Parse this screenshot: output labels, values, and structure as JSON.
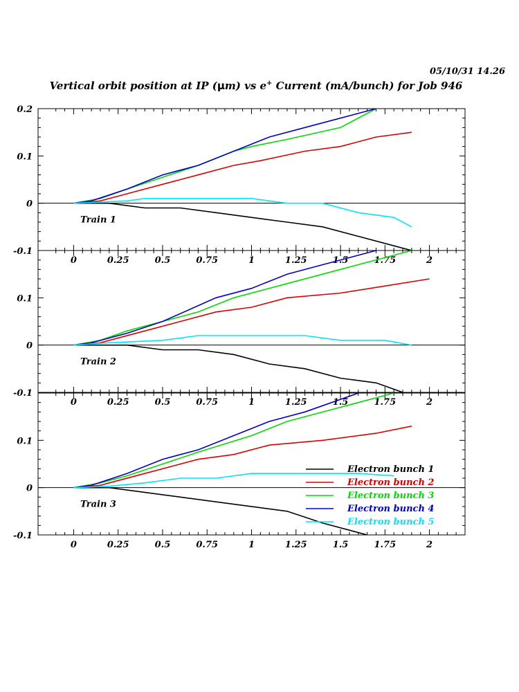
{
  "header": {
    "timestamp": "05/10/31   14.26",
    "title_before": "Vertical orbit position at IP (",
    "title_mu": "μ",
    "title_mid": "m) vs e",
    "title_sup": "+",
    "title_after": " Current (mA/bunch) for Job 946"
  },
  "chart_data": {
    "type": "line",
    "x_ticks": [
      "0",
      "0.25",
      "0.5",
      "0.75",
      "1",
      "1.25",
      "1.5",
      "1.75",
      "2"
    ],
    "x_range": [
      -0.2,
      2.2
    ],
    "legend": [
      {
        "name": "Electron bunch 1",
        "color": "#000000"
      },
      {
        "name": "Electron bunch 2",
        "color": "#dd0000"
      },
      {
        "name": "Electron bunch 3",
        "color": "#00dd00"
      },
      {
        "name": "Electron bunch 4",
        "color": "#0000cc"
      },
      {
        "name": "Electron bunch 5",
        "color": "#00e5ff"
      }
    ],
    "panels": [
      {
        "label": "Train 1",
        "ylim": [
          -0.1,
          0.2
        ],
        "y_ticks": [
          "0.2",
          "0.1",
          "0",
          "-0.1"
        ],
        "series": [
          {
            "color": "#000000",
            "x": [
              0,
              0.2,
              0.3,
              0.4,
              0.6,
              0.8,
              1.0,
              1.2,
              1.4,
              1.6,
              1.8,
              1.9
            ],
            "y": [
              0,
              0,
              -0.005,
              -0.01,
              -0.01,
              -0.02,
              -0.03,
              -0.04,
              -0.05,
              -0.07,
              -0.09,
              -0.1
            ]
          },
          {
            "color": "#dd0000",
            "x": [
              0,
              0.15,
              0.3,
              0.5,
              0.7,
              0.9,
              1.05,
              1.3,
              1.5,
              1.7,
              1.9
            ],
            "y": [
              0,
              0.005,
              0.02,
              0.04,
              0.06,
              0.08,
              0.09,
              0.11,
              0.12,
              0.14,
              0.15
            ]
          },
          {
            "color": "#00dd00",
            "x": [
              0,
              0.15,
              0.3,
              0.5,
              0.7,
              0.9,
              1.0,
              1.2,
              1.5,
              1.7
            ],
            "y": [
              0,
              0.01,
              0.03,
              0.055,
              0.08,
              0.11,
              0.12,
              0.135,
              0.16,
              0.2
            ]
          },
          {
            "color": "#0000cc",
            "x": [
              0,
              0.1,
              0.3,
              0.5,
              0.7,
              0.9,
              1.1,
              1.3,
              1.5,
              1.7
            ],
            "y": [
              0,
              0.005,
              0.03,
              0.06,
              0.08,
              0.11,
              0.14,
              0.16,
              0.18,
              0.2
            ]
          },
          {
            "color": "#00e5ff",
            "x": [
              0,
              0.3,
              0.4,
              1.0,
              1.2,
              1.4,
              1.6,
              1.8,
              1.9
            ],
            "y": [
              0,
              0.005,
              0.01,
              0.01,
              0,
              0,
              -0.02,
              -0.03,
              -0.05
            ]
          }
        ]
      },
      {
        "label": "Train 2",
        "ylim": [
          -0.1,
          0.2
        ],
        "y_ticks": [
          "0.1",
          "0",
          "-0.1"
        ],
        "series": [
          {
            "color": "#000000",
            "x": [
              0,
              0.3,
              0.5,
              0.7,
              0.9,
              1.1,
              1.3,
              1.5,
              1.7,
              1.85
            ],
            "y": [
              0,
              0,
              -0.01,
              -0.01,
              -0.02,
              -0.04,
              -0.05,
              -0.07,
              -0.08,
              -0.1
            ]
          },
          {
            "color": "#dd0000",
            "x": [
              0,
              0.15,
              0.4,
              0.6,
              0.8,
              1.0,
              1.2,
              1.5,
              1.75,
              2.0
            ],
            "y": [
              0,
              0.005,
              0.03,
              0.05,
              0.07,
              0.08,
              0.1,
              0.11,
              0.125,
              0.14
            ]
          },
          {
            "color": "#00dd00",
            "x": [
              0,
              0.15,
              0.3,
              0.5,
              0.7,
              0.9,
              1.2,
              1.5,
              1.9
            ],
            "y": [
              0,
              0.01,
              0.03,
              0.05,
              0.07,
              0.1,
              0.13,
              0.16,
              0.2
            ]
          },
          {
            "color": "#0000cc",
            "x": [
              0,
              0.1,
              0.3,
              0.5,
              0.8,
              1.0,
              1.2,
              1.4,
              1.7
            ],
            "y": [
              0,
              0.005,
              0.025,
              0.05,
              0.1,
              0.12,
              0.15,
              0.17,
              0.2
            ]
          },
          {
            "color": "#00e5ff",
            "x": [
              0,
              0.2,
              0.5,
              0.7,
              1.0,
              1.3,
              1.5,
              1.75,
              1.9
            ],
            "y": [
              0,
              0.005,
              0.01,
              0.02,
              0.02,
              0.02,
              0.01,
              0.01,
              0
            ]
          }
        ]
      },
      {
        "label": "Train 3",
        "ylim": [
          -0.1,
          0.2
        ],
        "y_ticks": [
          "0.1",
          "0",
          "-0.1"
        ],
        "series": [
          {
            "color": "#000000",
            "x": [
              0,
              0.2,
              0.5,
              0.8,
              1.2,
              1.4,
              1.65
            ],
            "y": [
              0,
              0,
              -0.015,
              -0.03,
              -0.05,
              -0.075,
              -0.1
            ]
          },
          {
            "color": "#dd0000",
            "x": [
              0,
              0.15,
              0.4,
              0.7,
              0.9,
              1.1,
              1.4,
              1.7,
              1.9
            ],
            "y": [
              0,
              0.005,
              0.03,
              0.06,
              0.07,
              0.09,
              0.1,
              0.115,
              0.13
            ]
          },
          {
            "color": "#00dd00",
            "x": [
              0,
              0.15,
              0.3,
              0.5,
              0.7,
              1.0,
              1.2,
              1.5,
              1.8
            ],
            "y": [
              0,
              0.01,
              0.025,
              0.05,
              0.075,
              0.11,
              0.14,
              0.17,
              0.2
            ]
          },
          {
            "color": "#0000cc",
            "x": [
              0,
              0.1,
              0.3,
              0.5,
              0.7,
              0.9,
              1.1,
              1.3,
              1.6
            ],
            "y": [
              0,
              0.005,
              0.03,
              0.06,
              0.08,
              0.11,
              0.14,
              0.16,
              0.2
            ]
          },
          {
            "color": "#00e5ff",
            "x": [
              0,
              0.2,
              0.4,
              0.6,
              0.8,
              1.0,
              1.2,
              1.4,
              1.6,
              1.8
            ],
            "y": [
              0,
              0.003,
              0.01,
              0.02,
              0.02,
              0.03,
              0.03,
              0.03,
              0.03,
              0.025
            ]
          }
        ]
      }
    ]
  }
}
